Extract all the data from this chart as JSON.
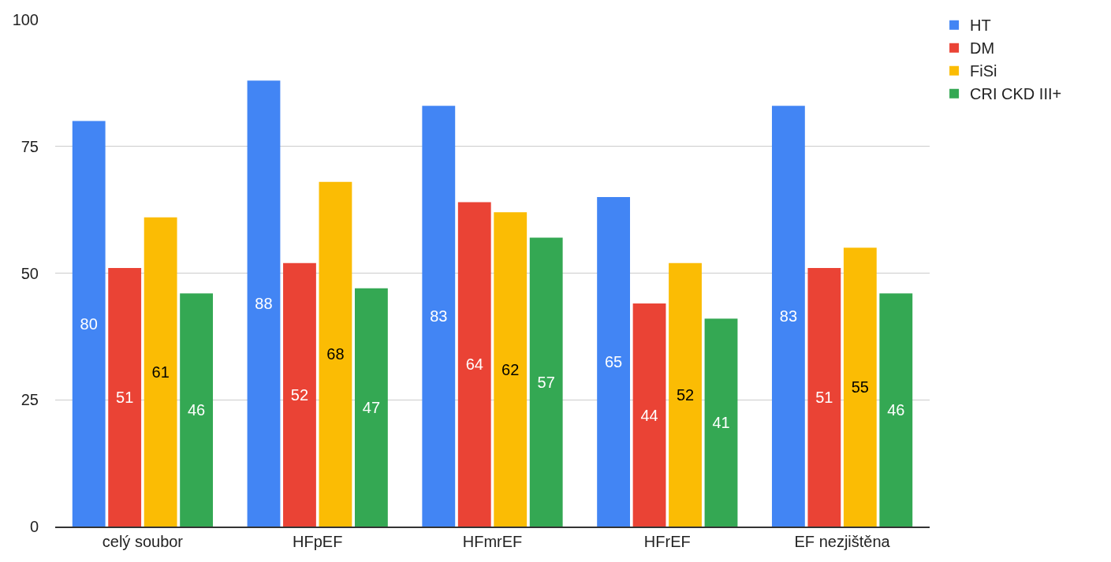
{
  "chart_data": {
    "type": "bar",
    "categories": [
      "celý soubor",
      "HFpEF",
      "HFmrEF",
      "HFrEF",
      "EF nezjištěna"
    ],
    "series": [
      {
        "name": "HT",
        "color": "#4285f4",
        "values": [
          80,
          88,
          83,
          65,
          83
        ]
      },
      {
        "name": "DM",
        "color": "#ea4335",
        "values": [
          51,
          52,
          64,
          44,
          51
        ]
      },
      {
        "name": "FiSi",
        "color": "#fbbc04",
        "values": [
          61,
          68,
          62,
          52,
          55
        ]
      },
      {
        "name": "CRI CKD III+",
        "color": "#34a853",
        "values": [
          46,
          47,
          57,
          41,
          46
        ]
      }
    ],
    "ylim": [
      0,
      100
    ],
    "yticks": [
      0,
      25,
      50,
      75,
      100
    ],
    "grid": "y",
    "legend": "top right",
    "data_labels": true
  }
}
